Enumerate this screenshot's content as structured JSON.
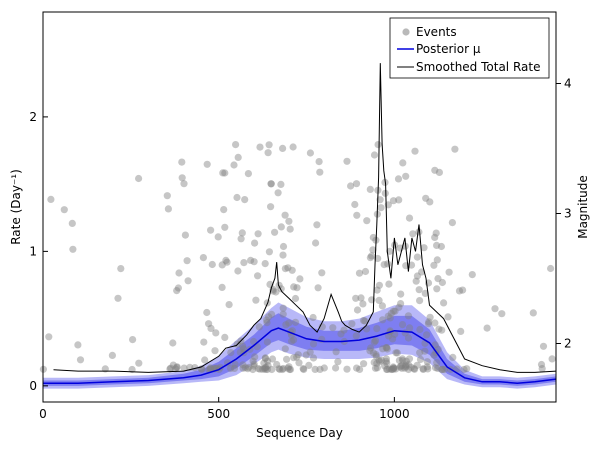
{
  "chart_data": {
    "type": "scatter",
    "xlabel": "Sequence Day",
    "ylabel_left": "Rate (Day⁻¹)",
    "ylabel_right": "Magnitude",
    "xlim": [
      0,
      1460
    ],
    "ylim_left": [
      -0.12,
      2.78
    ],
    "ylim_right": [
      1.55,
      4.55
    ],
    "x_ticks": [
      0,
      500,
      1000
    ],
    "y_ticks_left": [
      0,
      1,
      2
    ],
    "y_ticks_right": [
      2,
      3,
      4
    ],
    "grid": false,
    "legend_position": "top-right",
    "legend": [
      "Events",
      "Posterior μ",
      "Smoothed Total Rate"
    ],
    "colors": {
      "events": "#808080",
      "posterior_mean": "#0000dd",
      "band_outer": "#9a9af5",
      "band_inner": "#6b6bef",
      "smoothed": "#000000"
    },
    "posterior_mu": {
      "x": [
        0,
        100,
        200,
        300,
        400,
        450,
        500,
        550,
        600,
        650,
        670,
        700,
        750,
        800,
        850,
        900,
        950,
        1000,
        1050,
        1100,
        1150,
        1200,
        1250,
        1300,
        1350,
        1400,
        1460
      ],
      "y": [
        0.02,
        0.02,
        0.03,
        0.04,
        0.06,
        0.08,
        0.12,
        0.2,
        0.3,
        0.41,
        0.43,
        0.4,
        0.35,
        0.33,
        0.33,
        0.34,
        0.37,
        0.41,
        0.4,
        0.32,
        0.14,
        0.06,
        0.03,
        0.03,
        0.02,
        0.03,
        0.05
      ]
    },
    "posterior_band_inner": {
      "x": [
        0,
        100,
        200,
        300,
        400,
        450,
        500,
        550,
        600,
        650,
        670,
        700,
        750,
        800,
        850,
        900,
        950,
        1000,
        1050,
        1100,
        1150,
        1200,
        1250,
        1300,
        1350,
        1400,
        1460
      ],
      "upper": [
        0.04,
        0.04,
        0.05,
        0.06,
        0.09,
        0.12,
        0.18,
        0.28,
        0.38,
        0.51,
        0.54,
        0.5,
        0.44,
        0.41,
        0.41,
        0.43,
        0.47,
        0.52,
        0.52,
        0.42,
        0.2,
        0.09,
        0.05,
        0.05,
        0.04,
        0.05,
        0.07
      ],
      "lower": [
        0.0,
        0.0,
        0.01,
        0.02,
        0.04,
        0.05,
        0.07,
        0.13,
        0.22,
        0.32,
        0.34,
        0.31,
        0.27,
        0.26,
        0.26,
        0.26,
        0.28,
        0.31,
        0.3,
        0.23,
        0.09,
        0.03,
        0.01,
        0.01,
        0.0,
        0.01,
        0.03
      ]
    },
    "posterior_band_outer": {
      "x": [
        0,
        100,
        200,
        300,
        400,
        450,
        500,
        550,
        600,
        650,
        670,
        700,
        750,
        800,
        850,
        900,
        950,
        1000,
        1050,
        1100,
        1150,
        1200,
        1250,
        1300,
        1350,
        1400,
        1460
      ],
      "upper": [
        0.06,
        0.06,
        0.07,
        0.08,
        0.11,
        0.15,
        0.22,
        0.34,
        0.45,
        0.58,
        0.62,
        0.58,
        0.51,
        0.48,
        0.48,
        0.5,
        0.55,
        0.6,
        0.6,
        0.49,
        0.25,
        0.12,
        0.07,
        0.07,
        0.06,
        0.07,
        0.09
      ],
      "lower": [
        -0.02,
        -0.02,
        -0.01,
        0.0,
        0.02,
        0.03,
        0.04,
        0.08,
        0.16,
        0.25,
        0.27,
        0.24,
        0.21,
        0.2,
        0.2,
        0.2,
        0.21,
        0.24,
        0.23,
        0.17,
        0.05,
        0.01,
        -0.01,
        -0.01,
        -0.02,
        -0.01,
        0.01
      ]
    },
    "smoothed_total_rate": {
      "x": [
        30,
        100,
        200,
        300,
        400,
        450,
        500,
        520,
        550,
        580,
        600,
        620,
        640,
        650,
        660,
        665,
        670,
        680,
        700,
        720,
        740,
        760,
        780,
        800,
        820,
        840,
        850,
        860,
        880,
        900,
        920,
        940,
        945,
        950,
        955,
        960,
        965,
        970,
        975,
        980,
        990,
        1000,
        1010,
        1020,
        1030,
        1040,
        1050,
        1060,
        1070,
        1080,
        1090,
        1100,
        1120,
        1140,
        1160,
        1180,
        1200,
        1250,
        1300,
        1350,
        1400,
        1460
      ],
      "y": [
        0.12,
        0.11,
        0.11,
        0.1,
        0.11,
        0.14,
        0.22,
        0.28,
        0.3,
        0.38,
        0.45,
        0.5,
        0.62,
        0.73,
        0.8,
        0.92,
        0.75,
        0.7,
        0.65,
        0.6,
        0.55,
        0.45,
        0.4,
        0.5,
        0.68,
        0.55,
        0.48,
        0.45,
        0.42,
        0.4,
        0.45,
        0.55,
        0.9,
        1.2,
        1.55,
        2.4,
        1.8,
        1.6,
        1.5,
        1.0,
        0.8,
        1.1,
        0.9,
        1.0,
        1.1,
        0.85,
        1.1,
        1.0,
        1.2,
        0.9,
        0.8,
        0.6,
        0.55,
        0.5,
        0.4,
        0.3,
        0.2,
        0.15,
        0.12,
        0.1,
        0.1,
        0.11
      ]
    }
  }
}
